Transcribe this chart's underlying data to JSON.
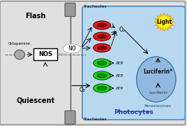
{
  "bg_color": "#e0e0e0",
  "photocyte_box_color": "#b8d8f0",
  "photocyte_box_edge": "#4488cc",
  "peroxisome_color": "#90b8e0",
  "peroxisome_edge": "#4477aa",
  "title_quiescent": "Quiescent",
  "title_flash": "Flash",
  "title_photocytes": "Photocytes",
  "title_peroxisomes": "Peroxisomes",
  "label_nos": "NOS",
  "label_no": "NO",
  "label_octopamine": "Octopamine",
  "label_tracheoles": "Tracheoles",
  "label_atp": "ATP",
  "label_o2_top": "O₂",
  "label_o2_bot": "O₂",
  "label_luciferin": "Luciferin",
  "label_luciferin_star": "Luciferin*",
  "label_light": "Light",
  "green_color": "#22cc22",
  "green_edge": "#006600",
  "red_color": "#dd2222",
  "red_edge": "#660000",
  "light_color": "#ffff00",
  "light_edge": "#ddaa00",
  "tracheole_color": "#888888",
  "cylinder_edge": "#555555"
}
